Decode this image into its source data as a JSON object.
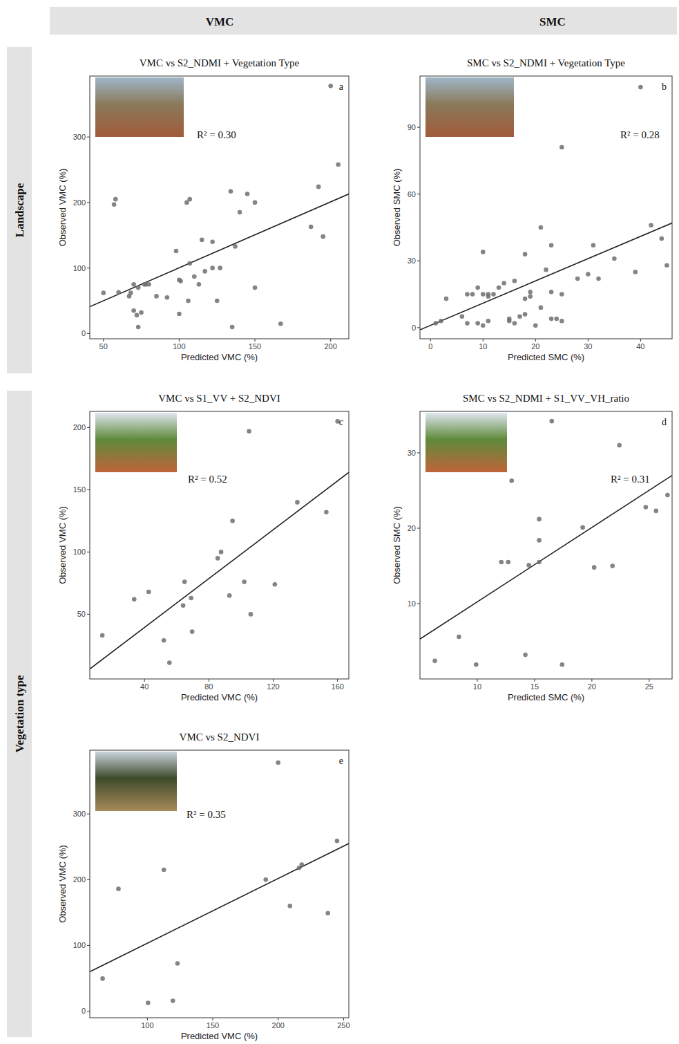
{
  "column_headers": [
    "VMC",
    "SMC"
  ],
  "row_labels": [
    "Landscape",
    "Vegetation type"
  ],
  "chart_data": [
    {
      "type": "scatter",
      "title": "VMC vs S2_NDMI + Vegetation Type",
      "x_label": "Predicted VMC (%)",
      "y_label": "Observed VMC (%)",
      "annotations": [
        "a",
        "R² = 0.30"
      ],
      "x": [
        200,
        205,
        192,
        187,
        195,
        145,
        150,
        134,
        140,
        137,
        150,
        167,
        135,
        57,
        58,
        105,
        107,
        98,
        115,
        122,
        100,
        101,
        107,
        110,
        113,
        117,
        122,
        127,
        125,
        106,
        100,
        92,
        85,
        80,
        77,
        78,
        73,
        70,
        68,
        67,
        70,
        72,
        73,
        75,
        60,
        50
      ],
      "values": [
        378,
        258,
        224,
        163,
        148,
        213,
        200,
        217,
        185,
        133,
        70,
        15,
        10,
        197,
        205,
        200,
        205,
        126,
        143,
        140,
        82,
        80,
        107,
        87,
        75,
        95,
        100,
        100,
        50,
        50,
        30,
        55,
        57,
        75,
        75,
        75,
        70,
        75,
        62,
        57,
        35,
        28,
        10,
        32,
        63,
        62
      ],
      "fit_line": {
        "x": [
          41,
          212
        ],
        "y": [
          41,
          213
        ]
      },
      "color": "#6e6e6e",
      "marker": "circle",
      "xlim": [
        41,
        212
      ],
      "xticks": [
        50,
        100,
        150,
        200
      ],
      "ylim": [
        -8,
        393
      ],
      "yticks": [
        0,
        100,
        200,
        300
      ],
      "grid": false
    },
    {
      "type": "scatter",
      "title": "SMC vs S2_NDMI + Vegetation Type",
      "x_label": "Predicted SMC (%)",
      "y_label": "Observed SMC (%)",
      "annotations": [
        "b",
        "R² = 0.28"
      ],
      "x": [
        40,
        25,
        21,
        23,
        42,
        44,
        45,
        39,
        35,
        31,
        30,
        32,
        28,
        22,
        10,
        16,
        14,
        13,
        9,
        8,
        10,
        11,
        11,
        12,
        7,
        6,
        3,
        1,
        2,
        7,
        9,
        10,
        11,
        15,
        15,
        16,
        17,
        18,
        18,
        19,
        19,
        20,
        21,
        23,
        24,
        25,
        25,
        23,
        18
      ],
      "values": [
        108,
        81,
        45,
        37,
        46,
        40,
        28,
        25,
        31,
        37,
        24,
        22,
        22,
        26,
        34,
        21,
        20,
        18,
        18,
        15,
        15,
        15,
        14,
        15,
        15,
        5,
        13,
        2,
        3,
        2,
        2,
        1,
        3,
        3,
        4,
        2,
        5,
        6,
        13,
        14,
        16,
        1,
        9,
        4,
        4,
        3,
        15,
        16,
        33
      ],
      "fit_line": {
        "x": [
          -2,
          46
        ],
        "y": [
          -1,
          47
        ]
      },
      "color": "#6e6e6e",
      "marker": "circle",
      "xlim": [
        -2,
        46
      ],
      "xticks": [
        0,
        10,
        20,
        30,
        40
      ],
      "ylim": [
        -5,
        113
      ],
      "yticks": [
        0,
        30,
        60,
        90
      ],
      "grid": false
    },
    {
      "type": "scatter",
      "title": "VMC vs S1_VV + S2_NDVI",
      "x_label": "Predicted VMC (%)",
      "y_label": "Observed VMC (%)",
      "annotations": [
        "c",
        "R² = 0.52"
      ],
      "x": [
        13.8,
        33.6,
        42.6,
        52,
        55.5,
        64,
        64.9,
        69,
        69.6,
        85.5,
        87.6,
        92.8,
        94.7,
        105,
        102,
        106,
        121,
        135,
        153,
        160
      ],
      "values": [
        33,
        62,
        68,
        29,
        11,
        57,
        76,
        63,
        36,
        95,
        100,
        65,
        125,
        197,
        76,
        50,
        74,
        140,
        132,
        205
      ],
      "fit_line": {
        "x": [
          6,
          167
        ],
        "y": [
          6,
          164
        ]
      },
      "color": "#6e6e6e",
      "marker": "circle",
      "xlim": [
        6,
        167
      ],
      "xticks": [
        40,
        80,
        120,
        160
      ],
      "ylim": [
        -2,
        213
      ],
      "yticks": [
        50,
        100,
        150,
        200
      ],
      "grid": false
    },
    {
      "type": "scatter",
      "title": "SMC vs S2_NDMI + S1_VV_VH_ratio",
      "x_label": "Predicted SMC (%)",
      "y_label": "Observed SMC (%)",
      "annotations": [
        "d",
        "R² = 0.31"
      ],
      "x": [
        6.3,
        8.4,
        9.9,
        13,
        12.1,
        12.7,
        14.2,
        14.5,
        15.4,
        15.4,
        15.4,
        16.5,
        17.4,
        19.2,
        20.2,
        21.8,
        22.4,
        24.7,
        25.6,
        26.6
      ],
      "values": [
        2.4,
        5.6,
        1.9,
        26.3,
        15.5,
        15.5,
        3.2,
        15.1,
        21.2,
        18.4,
        15.5,
        34.2,
        1.9,
        20.1,
        14.8,
        15,
        31,
        22.8,
        22.3,
        24.4
      ],
      "fit_line": {
        "x": [
          5,
          27
        ],
        "y": [
          5.3,
          27
        ]
      },
      "color": "#6e6e6e",
      "marker": "circle",
      "xlim": [
        5,
        27
      ],
      "xticks": [
        10,
        15,
        20,
        25
      ],
      "ylim": [
        0,
        35.5
      ],
      "yticks": [
        10,
        20,
        30
      ],
      "grid": false
    },
    {
      "type": "scatter",
      "title": "VMC vs  S2_NDVI",
      "x_label": "Predicted VMC (%)",
      "y_label": "Observed VMC (%)",
      "annotations": [
        "e",
        "R² = 0.35"
      ],
      "x": [
        65.8,
        77.9,
        100.5,
        119.5,
        112.6,
        123,
        190.5,
        200,
        209,
        216,
        218,
        238,
        245
      ],
      "values": [
        49.5,
        186,
        12.6,
        15.8,
        215,
        72.6,
        200,
        378,
        160,
        218,
        223,
        149,
        259
      ],
      "fit_line": {
        "x": [
          56,
          254
        ],
        "y": [
          60,
          255
        ]
      },
      "color": "#6e6e6e",
      "marker": "circle",
      "xlim": [
        56,
        254
      ],
      "xticks": [
        100,
        150,
        200,
        250
      ],
      "ylim": [
        -10,
        397
      ],
      "yticks": [
        0,
        100,
        200,
        300
      ],
      "grid": false
    }
  ]
}
